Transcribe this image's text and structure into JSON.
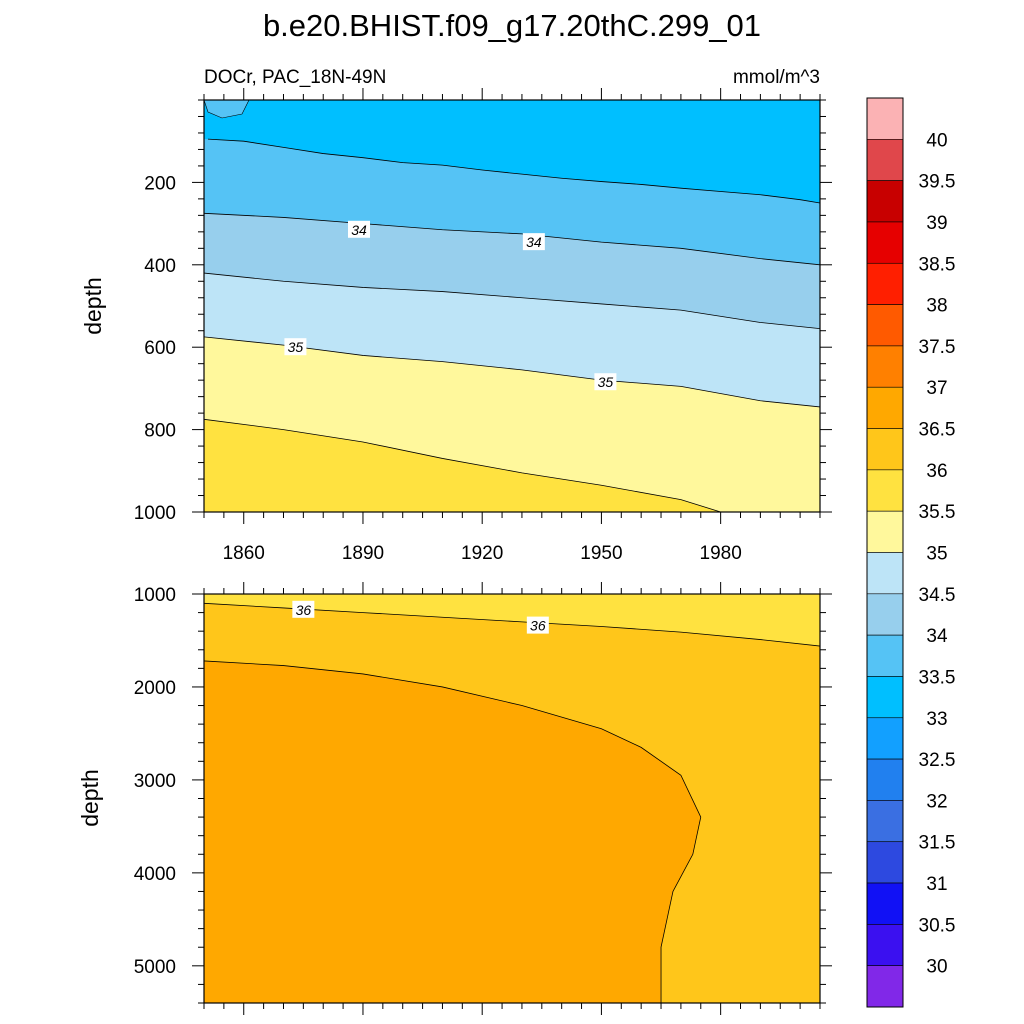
{
  "chart_data": {
    "type": "contour",
    "title": "b.e20.BHIST.f09_g17.20thC.299_01",
    "variable_label": "DOCr, PAC_18N-49N",
    "units": "mmol/m^3",
    "x_range": [
      1850,
      2005
    ],
    "x_ticks": [
      "1860",
      "1890",
      "1920",
      "1950",
      "1980"
    ],
    "colorbar": {
      "labels": [
        "40",
        "39.5",
        "39",
        "38.5",
        "38",
        "37.5",
        "37",
        "36.5",
        "36",
        "35.5",
        "35",
        "34.5",
        "34",
        "33.5",
        "33",
        "32.5",
        "32",
        "31.5",
        "31",
        "30.5",
        "30"
      ],
      "colors": [
        "#fbb2b4",
        "#e0474b",
        "#c80000",
        "#e60000",
        "#ff1f00",
        "#ff5a00",
        "#ff8000",
        "#ffa800",
        "#ffc61a",
        "#ffe240",
        "#fff89c",
        "#bde4f7",
        "#97cfed",
        "#55c3f5",
        "#00bfff",
        "#12a0ff",
        "#2180ef",
        "#3a6fe2",
        "#2d49e0",
        "#1111f5",
        "#3b10f0",
        "#8128e8"
      ]
    },
    "panels": [
      {
        "name": "upper",
        "ylabel": "depth",
        "y_range": [
          0,
          1000
        ],
        "y_ticks": [
          "200",
          "400",
          "600",
          "800",
          "1000"
        ],
        "x_tick_labels_shown": true,
        "region_colors": [
          "#00bfff",
          "#55c3f5",
          "#97cfed",
          "#bde4f7",
          "#fff89c",
          "#ffe240"
        ],
        "boundaries": [
          {
            "level": "33.5",
            "x": [
              1851,
              1860,
              1870,
              1880,
              1890,
              1900,
              1910,
              1920,
              1930,
              1940,
              1950,
              1960,
              1970,
              1980,
              1990,
              2000,
              2005
            ],
            "depth": [
              95,
              100,
              115,
              130,
              140,
              152,
              158,
              170,
              180,
              190,
              198,
              205,
              214,
              222,
              230,
              242,
              250
            ]
          },
          {
            "level": "34",
            "x": [
              1850,
              1870,
              1890,
              1910,
              1930,
              1950,
              1970,
              1990,
              2005
            ],
            "depth": [
              275,
              285,
              300,
              315,
              325,
              345,
              360,
              385,
              400
            ]
          },
          {
            "level": "34.5",
            "x": [
              1850,
              1870,
              1890,
              1910,
              1930,
              1950,
              1970,
              1990,
              2005
            ],
            "depth": [
              420,
              440,
              455,
              465,
              480,
              495,
              510,
              540,
              555
            ]
          },
          {
            "level": "35",
            "x": [
              1850,
              1870,
              1890,
              1910,
              1930,
              1950,
              1970,
              1990,
              2005
            ],
            "depth": [
              575,
              595,
              620,
              635,
              655,
              680,
              695,
              730,
              745
            ]
          },
          {
            "level": "35.5",
            "x": [
              1850,
              1870,
              1890,
              1910,
              1930,
              1950,
              1970,
              1980
            ],
            "depth": [
              775,
              800,
              830,
              870,
              905,
              935,
              970,
              1000
            ]
          }
        ],
        "contour_labels": [
          {
            "text": "34",
            "x": 1889,
            "depth": 315
          },
          {
            "text": "34",
            "x": 1933,
            "depth": 345
          },
          {
            "text": "35",
            "x": 1873,
            "depth": 600
          },
          {
            "text": "35",
            "x": 1951,
            "depth": 685
          }
        ]
      },
      {
        "name": "lower",
        "ylabel": "depth",
        "y_range": [
          1000,
          5400
        ],
        "y_ticks": [
          "1000",
          "2000",
          "3000",
          "4000",
          "5000"
        ],
        "x_tick_labels_shown": false,
        "region_colors": [
          "#ffe240",
          "#ffc61a",
          "#ffa800"
        ],
        "boundaries": [
          {
            "level": "36",
            "x": [
              1850,
              1870,
              1890,
              1910,
              1930,
              1950,
              1970,
              1990,
              2005
            ],
            "depth": [
              1100,
              1150,
              1200,
              1250,
              1300,
              1350,
              1410,
              1490,
              1560
            ]
          },
          {
            "level": "36.5",
            "x": [
              1850,
              1870,
              1890,
              1910,
              1930,
              1950,
              1960,
              1970,
              1975,
              1973,
              1968,
              1965,
              1965
            ],
            "depth": [
              1720,
              1770,
              1860,
              2000,
              2200,
              2450,
              2650,
              2950,
              3400,
              3800,
              4200,
              4800,
              5400
            ]
          }
        ],
        "contour_labels": [
          {
            "text": "36",
            "x": 1875,
            "depth": 1170
          },
          {
            "text": "36",
            "x": 1934,
            "depth": 1340
          }
        ]
      }
    ]
  }
}
